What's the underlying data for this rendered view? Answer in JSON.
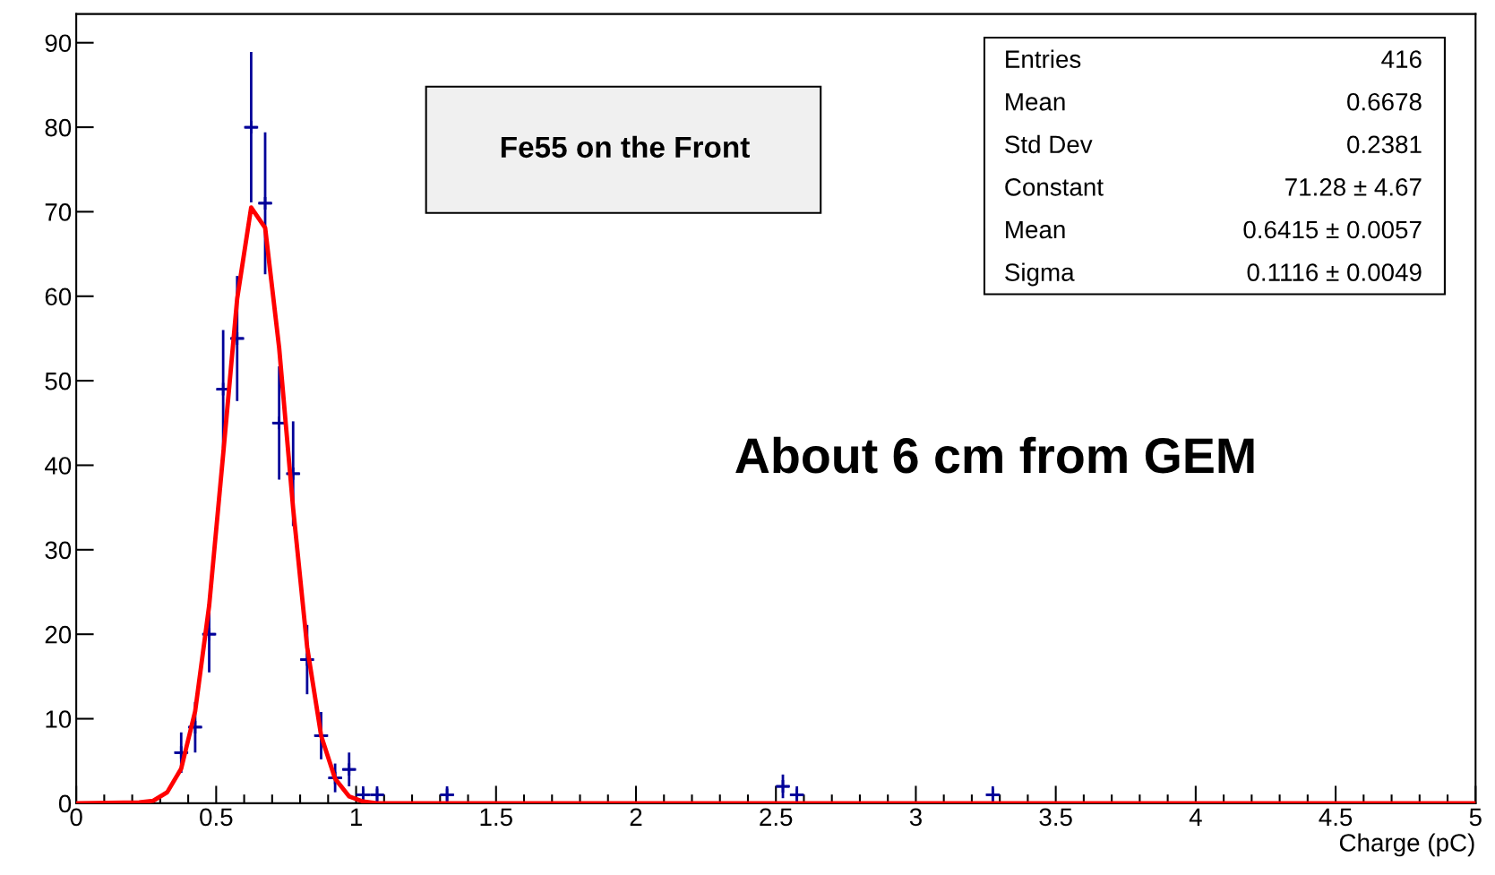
{
  "chart_data": {
    "type": "scatter",
    "xlabel": "Charge (pC)",
    "xlim": [
      0,
      5
    ],
    "xticks": [
      0,
      0.5,
      1,
      1.5,
      2,
      2.5,
      3,
      3.5,
      4,
      4.5,
      5
    ],
    "ylim": [
      0,
      93.4
    ],
    "yticks": [
      0,
      10,
      20,
      30,
      40,
      50,
      60,
      70,
      80,
      90
    ],
    "grid": false,
    "legend": false,
    "series": [
      {
        "color": "#000099",
        "marker": "cross",
        "x": [
          0.375,
          0.425,
          0.475,
          0.525,
          0.575,
          0.625,
          0.675,
          0.725,
          0.775,
          0.825,
          0.875,
          0.925,
          0.975,
          1.025,
          1.075,
          1.325,
          2.525,
          2.575,
          3.275
        ],
        "values": [
          6,
          9,
          20,
          49,
          55,
          80,
          71,
          45,
          39,
          17,
          8,
          3,
          4,
          1,
          1,
          1,
          2,
          1,
          1
        ],
        "errors": [
          2.4,
          3,
          4.5,
          7,
          7.4,
          8.9,
          8.4,
          6.7,
          6.2,
          4.1,
          2.8,
          1.7,
          2,
          1,
          1,
          1,
          1.4,
          1,
          1
        ],
        "xerrors": [
          0.025,
          0.025,
          0.025,
          0.025,
          0.025,
          0.025,
          0.025,
          0.025,
          0.025,
          0.025,
          0.025,
          0.025,
          0.025,
          0.025,
          0.025,
          0.025,
          0.025,
          0.025,
          0.025
        ]
      },
      {
        "type": "line",
        "color": "#ff0000",
        "line_style": "solid",
        "x": [
          0,
          0.225,
          0.275,
          0.325,
          0.375,
          0.425,
          0.475,
          0.525,
          0.575,
          0.625,
          0.675,
          0.725,
          0.775,
          0.825,
          0.875,
          0.925,
          0.975,
          1.025,
          1.075,
          1.125,
          5
        ],
        "values": [
          0,
          0.1,
          0.3,
          1.3,
          4.1,
          10.9,
          23.4,
          41.3,
          59.7,
          70.5,
          68.1,
          53.9,
          34.9,
          18.5,
          8,
          2.9,
          0.8,
          0.2,
          0,
          0,
          0
        ]
      }
    ],
    "annotations": [
      "Fe55 on the Front",
      "About 6 cm from GEM",
      "Entries",
      "416",
      "Mean",
      "0.6678",
      "Std Dev",
      "0.2381",
      "Constant",
      "71.28 ± 4.67",
      "Mean",
      "0.6415 ± 0.0057",
      "Sigma",
      "0.1116 ± 0.0049"
    ]
  }
}
